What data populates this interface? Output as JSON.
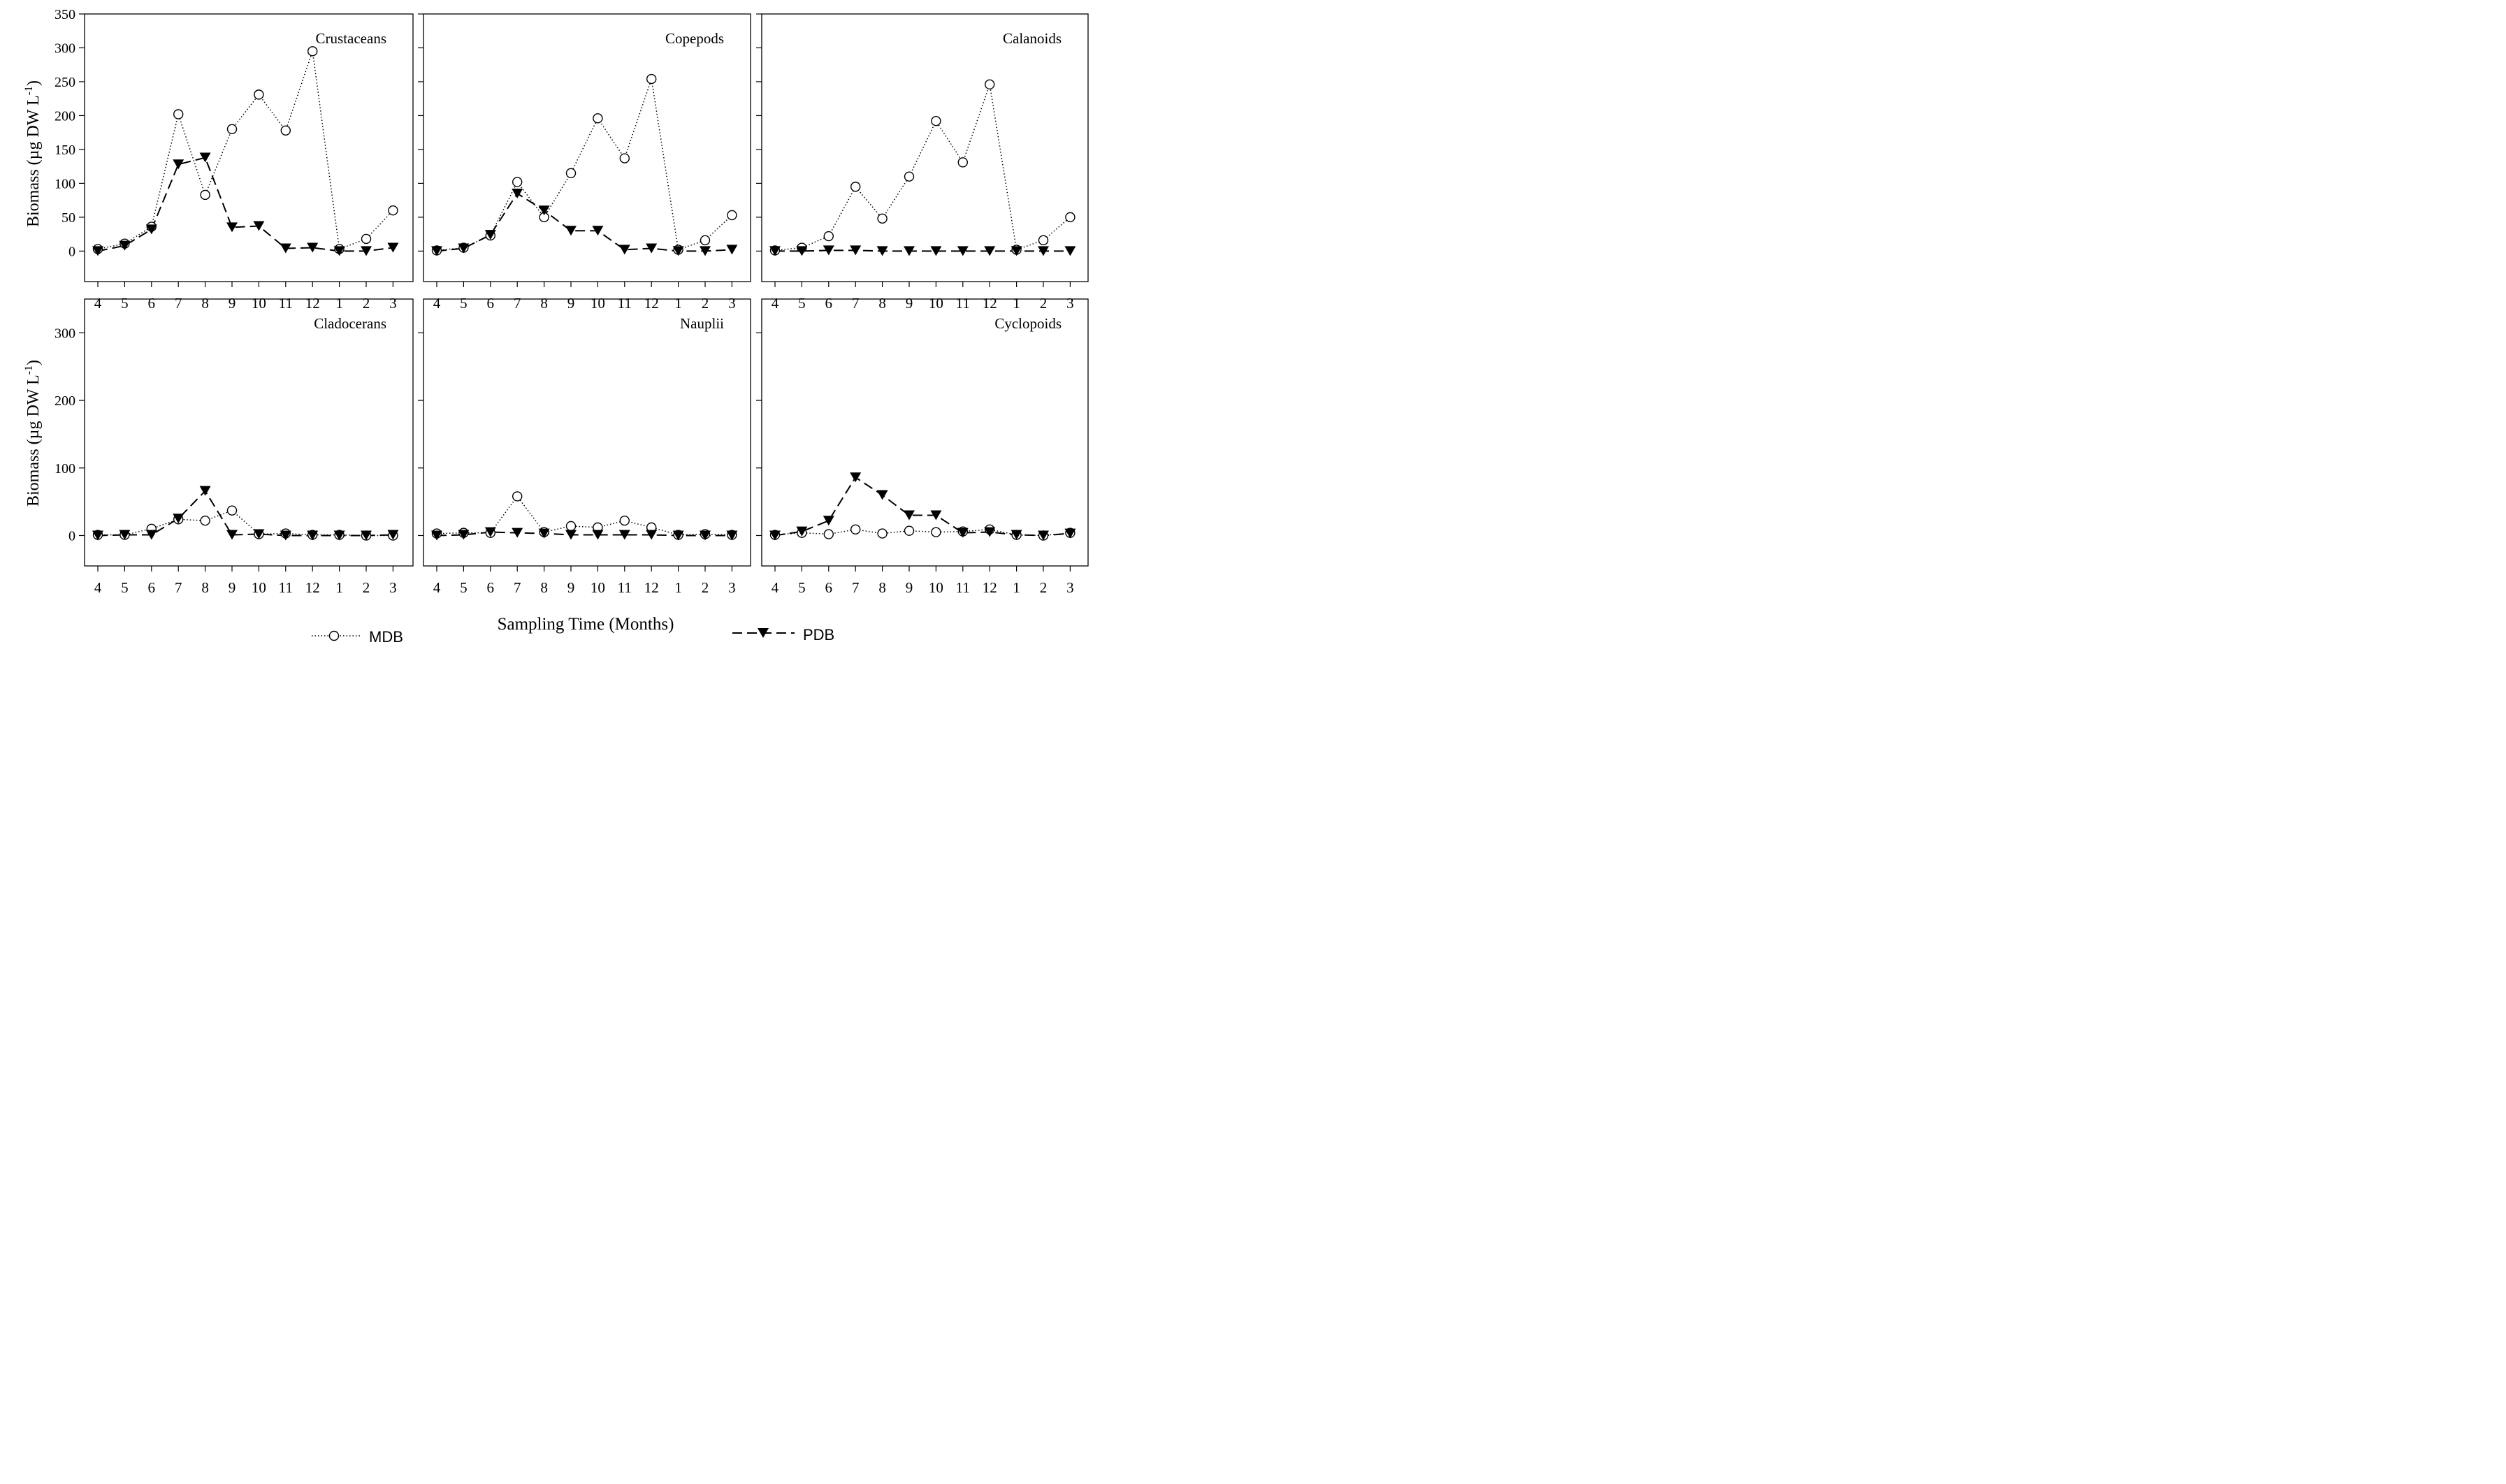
{
  "figure": {
    "x_axis_title": "Sampling Time (Months)",
    "y_axis_title_main": "Biomass (µg DW L",
    "y_axis_title_sup": "-1",
    "y_axis_title_close": ")"
  },
  "legend": {
    "mdb_label": "MDB",
    "pdb_label": "PDB"
  },
  "chart_data": {
    "type": "line",
    "categories": [
      "4",
      "5",
      "6",
      "7",
      "8",
      "9",
      "10",
      "11",
      "12",
      "1",
      "2",
      "3"
    ],
    "xlabel": "Sampling Time (Months)",
    "ylabel": "Biomass (µg DW L-1)",
    "series_names": [
      "MDB",
      "PDB"
    ],
    "panels": [
      {
        "title": "Crustaceans",
        "ylim": [
          -45,
          350
        ],
        "yticks": [
          0,
          50,
          100,
          150,
          200,
          250,
          300,
          350
        ],
        "series": [
          {
            "name": "MDB",
            "values": [
              3,
              11,
              36,
              202,
              83,
              180,
              231,
              178,
              295,
              3,
              18,
              60
            ]
          },
          {
            "name": "PDB",
            "values": [
              0,
              8,
              32,
              128,
              138,
              35,
              37,
              4,
              5,
              0,
              0,
              5
            ]
          }
        ]
      },
      {
        "title": "Copepods",
        "ylim": [
          -45,
          350
        ],
        "yticks": [
          0,
          50,
          100,
          150,
          200,
          250,
          300,
          350
        ],
        "series": [
          {
            "name": "MDB",
            "values": [
              1,
              5,
              23,
              102,
              50,
              115,
              196,
              137,
              254,
              2,
              16,
              53
            ]
          },
          {
            "name": "PDB",
            "values": [
              0,
              4,
              24,
              85,
              60,
              30,
              30,
              2,
              4,
              0,
              0,
              2
            ]
          }
        ]
      },
      {
        "title": "Calanoids",
        "ylim": [
          -45,
          350
        ],
        "yticks": [
          0,
          50,
          100,
          150,
          200,
          250,
          300,
          350
        ],
        "series": [
          {
            "name": "MDB",
            "values": [
              1,
              5,
              22,
              95,
              48,
              110,
              192,
              131,
              246,
              2,
              16,
              50
            ]
          },
          {
            "name": "PDB",
            "values": [
              0,
              0,
              1,
              1,
              0,
              0,
              0,
              0,
              0,
              0,
              0,
              0
            ]
          }
        ]
      },
      {
        "title": "Cladocerans",
        "ylim": [
          -45,
          350
        ],
        "yticks": [
          0,
          100,
          200,
          300
        ],
        "series": [
          {
            "name": "MDB",
            "values": [
              1,
              1,
              10,
              24,
              22,
              37,
              2,
              3,
              1,
              1,
              0,
              0
            ]
          },
          {
            "name": "PDB",
            "values": [
              0,
              1,
              1,
              25,
              66,
              1,
              2,
              0,
              0,
              0,
              0,
              1
            ]
          }
        ]
      },
      {
        "title": "Nauplii",
        "ylim": [
          -45,
          350
        ],
        "yticks": [
          0,
          100,
          200,
          300
        ],
        "series": [
          {
            "name": "MDB",
            "values": [
              3,
              4,
              4,
              58,
              5,
              14,
              12,
              22,
              12,
              1,
              2,
              1
            ]
          },
          {
            "name": "PDB",
            "values": [
              0,
              1,
              5,
              4,
              3,
              1,
              1,
              1,
              1,
              0,
              0,
              0
            ]
          }
        ]
      },
      {
        "title": "Cyclopoids",
        "ylim": [
          -45,
          350
        ],
        "yticks": [
          0,
          100,
          200,
          300
        ],
        "series": [
          {
            "name": "MDB",
            "values": [
              1,
              4,
              2,
              9,
              3,
              7,
              5,
              6,
              9,
              1,
              0,
              4
            ]
          },
          {
            "name": "PDB",
            "values": [
              0,
              6,
              22,
              86,
              60,
              30,
              30,
              4,
              5,
              1,
              0,
              3
            ]
          }
        ]
      }
    ]
  }
}
